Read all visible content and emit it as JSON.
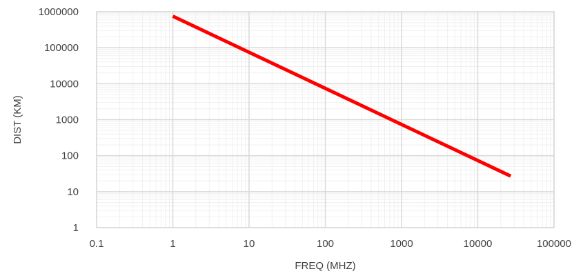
{
  "chart_data": {
    "type": "line",
    "title": "",
    "xlabel": "FREQ (MHZ)",
    "ylabel": "DIST (KM)",
    "x_scale": "log",
    "y_scale": "log",
    "xlim": [
      0.1,
      100000
    ],
    "ylim": [
      1,
      1000000
    ],
    "x_ticks": [
      "0.1",
      "1",
      "10",
      "100",
      "1000",
      "10000",
      "100000"
    ],
    "y_ticks": [
      "1",
      "10",
      "100",
      "1000",
      "10000",
      "100000",
      "1000000"
    ],
    "grid": true,
    "legend": "none",
    "series": [
      {
        "color": "#ff0000",
        "x": [
          1,
          27000
        ],
        "y": [
          750000,
          27
        ]
      }
    ]
  },
  "colors": {
    "line": "#ff0000",
    "major_grid": "#d9d9d9",
    "minor_grid": "#f0f0f0",
    "text": "#404040"
  }
}
